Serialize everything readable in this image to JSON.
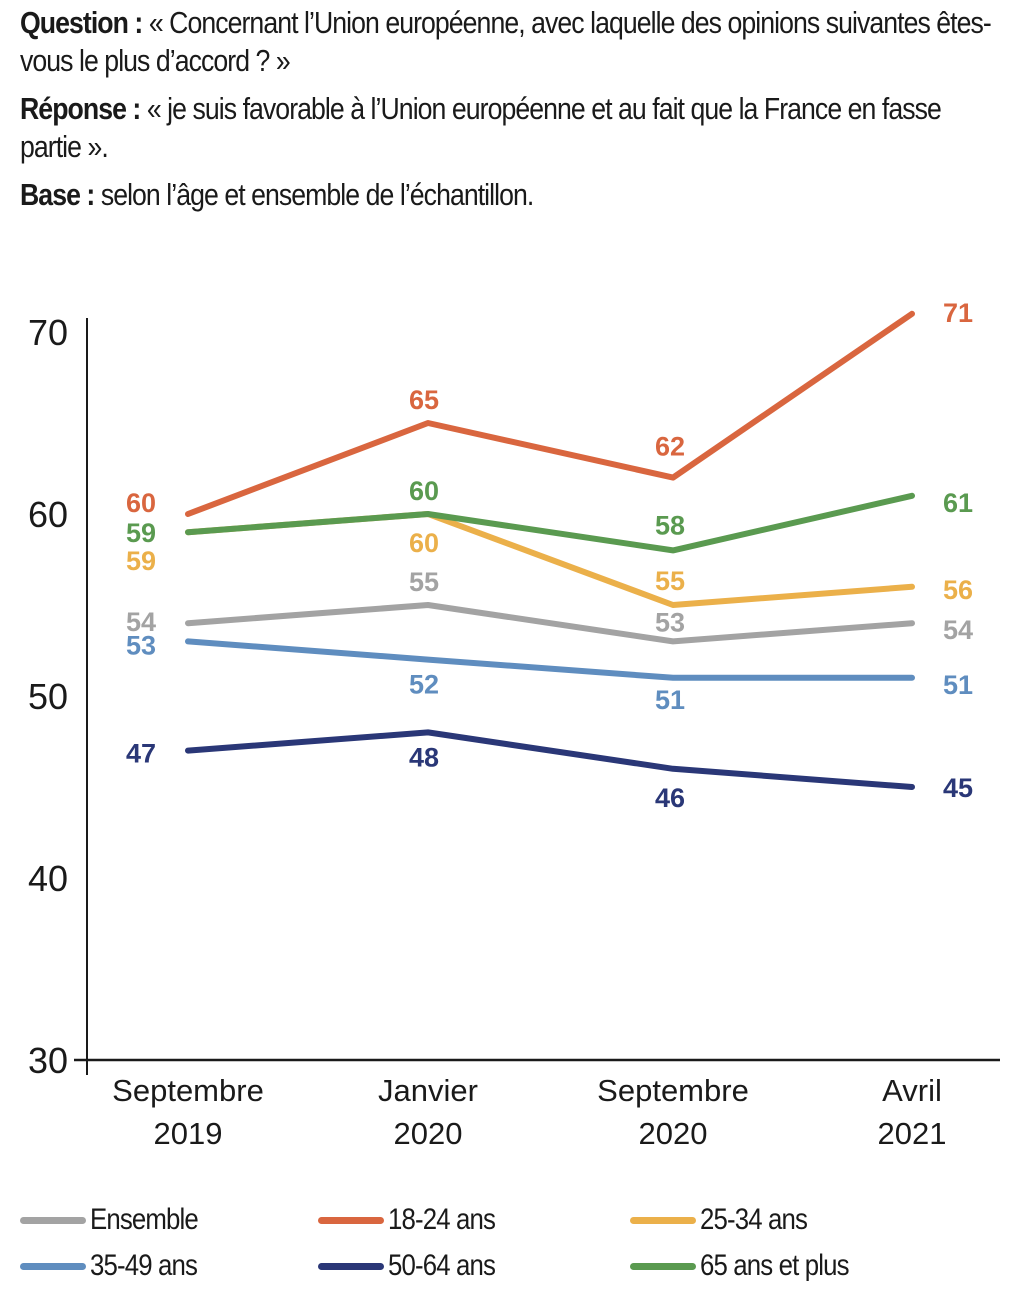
{
  "header": {
    "question_label": "Question :",
    "question_text": "« Concernant l’Union européenne, avec laquelle des opinions suivantes êtes-vous le plus d’accord ? »",
    "response_label": "Réponse :",
    "response_text": "« je suis favorable à l’Union européenne et au fait que la France en fasse partie ».",
    "base_label": "Base :",
    "base_text": "selon l’âge et ensemble de l’échantillon."
  },
  "chart_data": {
    "type": "line",
    "title": "",
    "xlabel": "",
    "ylabel": "",
    "ylim": [
      30,
      70
    ],
    "yticks": [
      30,
      40,
      50,
      60,
      70
    ],
    "grid": false,
    "legend_position": "bottom",
    "categories": [
      [
        "Septembre",
        "2019"
      ],
      [
        "Janvier",
        "2020"
      ],
      [
        "Septembre",
        "2020"
      ],
      [
        "Avril",
        "2021"
      ]
    ],
    "series": [
      {
        "name": "Ensemble",
        "color": "#a3a3a3",
        "values": [
          54,
          55,
          53,
          54
        ]
      },
      {
        "name": "18-24 ans",
        "color": "#d9663f",
        "values": [
          60,
          65,
          62,
          71
        ]
      },
      {
        "name": "25-34 ans",
        "color": "#ebb04a",
        "values": [
          59,
          60,
          55,
          56
        ]
      },
      {
        "name": "35-49 ans",
        "color": "#5f8dbf",
        "values": [
          53,
          52,
          51,
          51
        ]
      },
      {
        "name": "50-64 ans",
        "color": "#2a3777",
        "values": [
          47,
          48,
          46,
          45
        ]
      },
      {
        "name": "65 ans et plus",
        "color": "#5a9a50",
        "values": [
          59,
          60,
          58,
          61
        ]
      }
    ]
  }
}
